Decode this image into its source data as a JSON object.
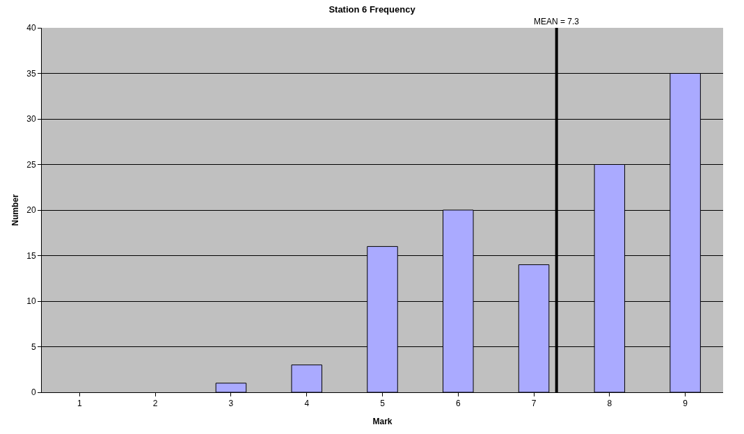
{
  "chart_data": {
    "type": "bar",
    "title": "Station 6 Frequency",
    "xlabel": "Mark",
    "ylabel": "Number",
    "x": [
      1,
      2,
      3,
      4,
      5,
      6,
      7,
      8,
      9
    ],
    "xlim": [
      0.5,
      9.5
    ],
    "xticks": [
      1,
      2,
      3,
      4,
      5,
      6,
      7,
      8,
      9
    ],
    "values": [
      0,
      0,
      1,
      3,
      16,
      20,
      14,
      25,
      35
    ],
    "color": "#aaaaff",
    "ylim": [
      0,
      40
    ],
    "yticks": [
      0,
      5,
      10,
      15,
      20,
      25,
      30,
      35,
      40
    ],
    "grid": "y",
    "ref_lines": [
      {
        "axis": "x",
        "value": 7.3,
        "label": "MEAN = 7.3",
        "color": "#000000"
      }
    ]
  }
}
